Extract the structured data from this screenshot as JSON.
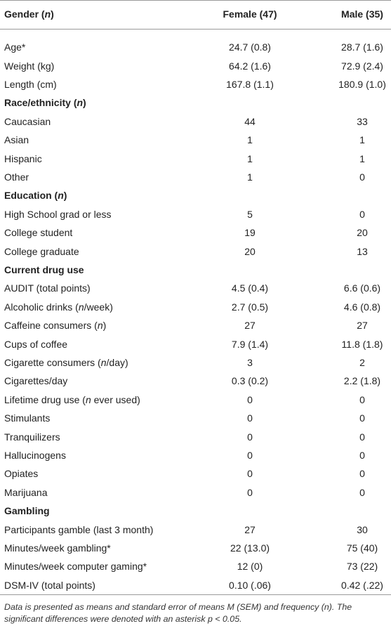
{
  "table": {
    "header": [
      [
        "Gender (",
        "n",
        ")"
      ],
      "Female (47)",
      "Male (35)"
    ],
    "rows": [
      {
        "label": "Age*",
        "female": "24.7 (0.8)",
        "male": "28.7 (1.6)"
      },
      {
        "label": "Weight (kg)",
        "female": "64.2 (1.6)",
        "male": "72.9 (2.4)"
      },
      {
        "label": "Length (cm)",
        "female": "167.8 (1.1)",
        "male": "180.9 (1.0)"
      },
      {
        "section": [
          "Race/ethnicity (",
          "n",
          ")"
        ]
      },
      {
        "label": "Caucasian",
        "female": "44",
        "male": "33"
      },
      {
        "label": "Asian",
        "female": "1",
        "male": "1"
      },
      {
        "label": "Hispanic",
        "female": "1",
        "male": "1"
      },
      {
        "label": "Other",
        "female": "1",
        "male": "0"
      },
      {
        "section": [
          "Education (",
          "n",
          ")"
        ]
      },
      {
        "label": "High School grad or less",
        "female": "5",
        "male": "0"
      },
      {
        "label": "College student",
        "female": "19",
        "male": "20"
      },
      {
        "label": "College graduate",
        "female": "20",
        "male": "13"
      },
      {
        "section": "Current drug use"
      },
      {
        "label": "AUDIT (total points)",
        "female": "4.5 (0.4)",
        "male": "6.6 (0.6)"
      },
      {
        "label": [
          "Alcoholic drinks (",
          "n",
          "/week)"
        ],
        "female": "2.7 (0.5)",
        "male": "4.6 (0.8)"
      },
      {
        "label": [
          "Caffeine consumers (",
          "n",
          ")"
        ],
        "female": "27",
        "male": "27"
      },
      {
        "label": "Cups of coffee",
        "female": "7.9 (1.4)",
        "male": "11.8 (1.8)"
      },
      {
        "label": [
          "Cigarette consumers (",
          "n",
          "/day)"
        ],
        "female": "3",
        "male": "2"
      },
      {
        "label": "Cigarettes/day",
        "female": "0.3 (0.2)",
        "male": "2.2 (1.8)"
      },
      {
        "label": [
          "Lifetime drug use (",
          "n",
          " ever used)"
        ],
        "female": "0",
        "male": "0"
      },
      {
        "label": "Stimulants",
        "female": "0",
        "male": "0"
      },
      {
        "label": "Tranquilizers",
        "female": "0",
        "male": "0"
      },
      {
        "label": "Hallucinogens",
        "female": "0",
        "male": "0"
      },
      {
        "label": "Opiates",
        "female": "0",
        "male": "0"
      },
      {
        "label": "Marijuana",
        "female": "0",
        "male": "0"
      },
      {
        "section": "Gambling"
      },
      {
        "label": "Participants gamble (last 3 month)",
        "female": "27",
        "male": "30"
      },
      {
        "label": "Minutes/week gambling*",
        "female": "22 (13.0)",
        "male": "75 (40)"
      },
      {
        "label": "Minutes/week computer gaming*",
        "female": "12 (0)",
        "male": "73 (22)"
      },
      {
        "label": "DSM-IV (total points)",
        "female": "0.10 (.06)",
        "male": "0.42 (.22)"
      }
    ],
    "footnote": "Data is presented as means and standard error of means M (SEM) and frequency (n). The significant differences were denoted with an asterisk p < 0.05."
  }
}
